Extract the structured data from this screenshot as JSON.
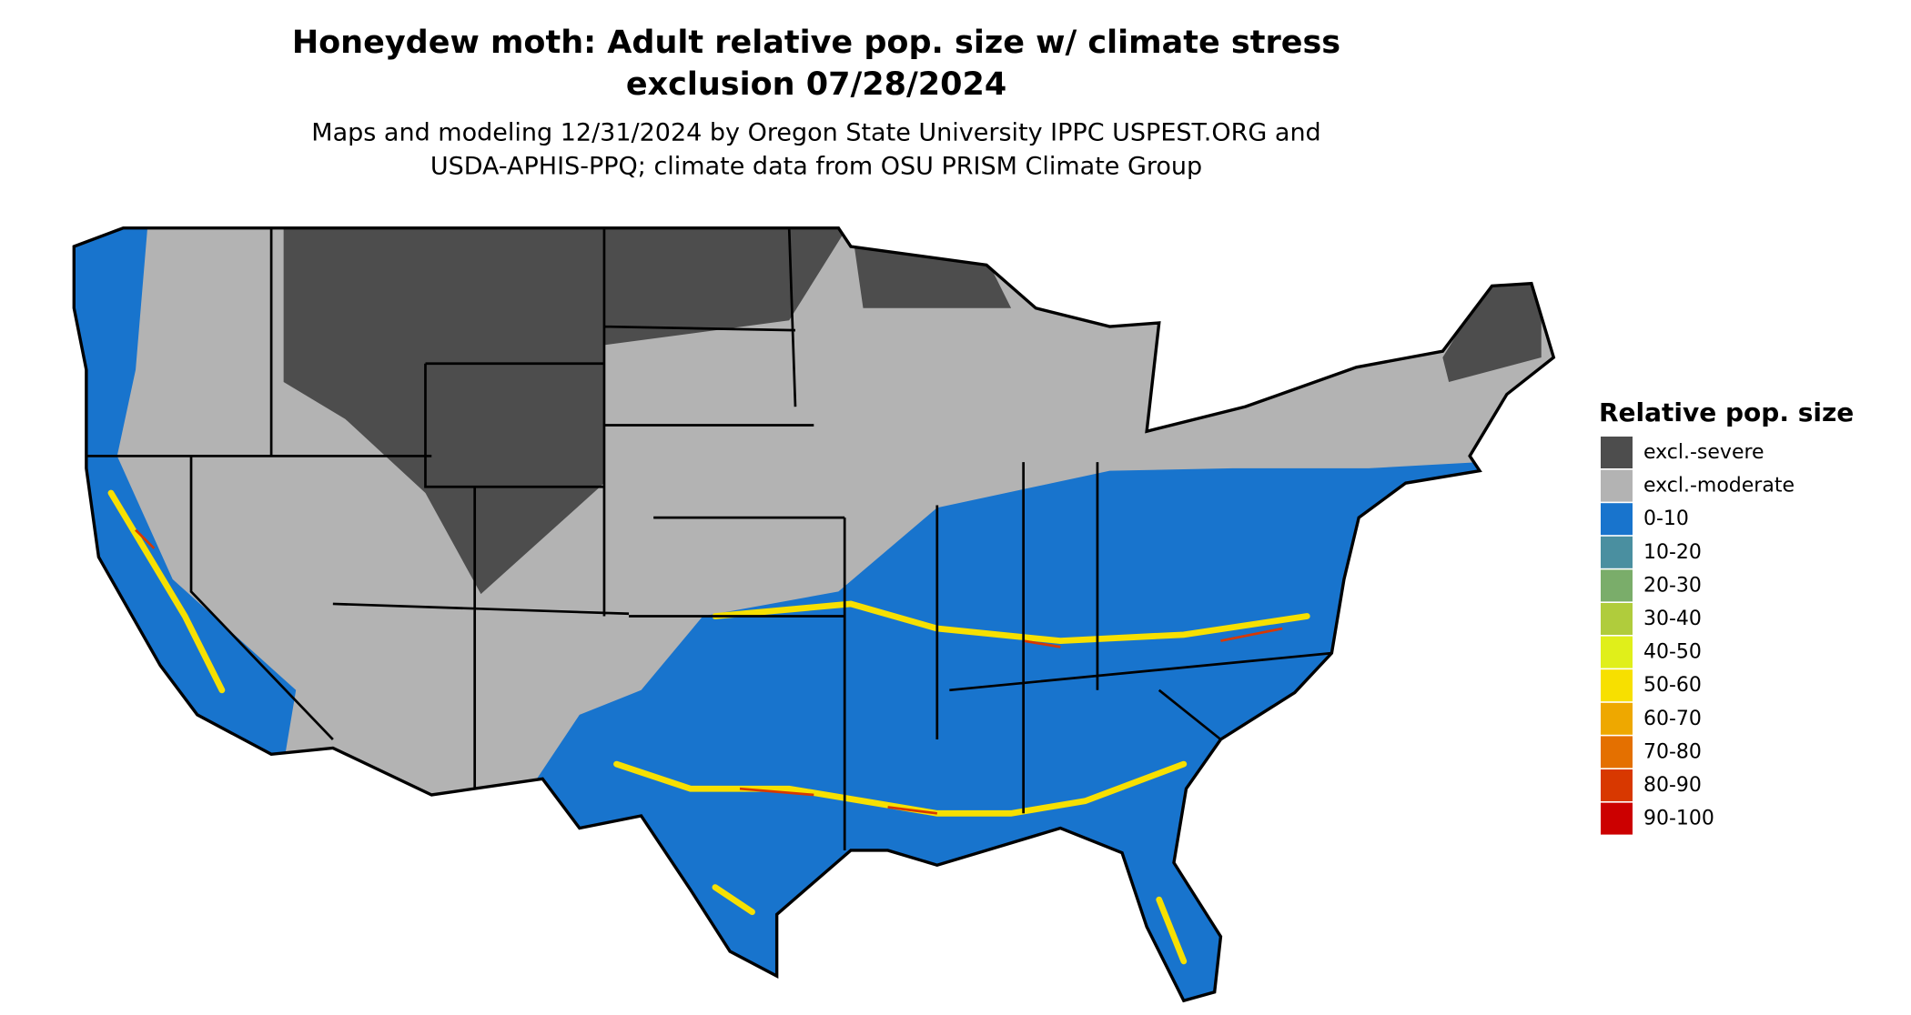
{
  "title": [
    "Honeydew moth: Adult relative pop. size w/ climate stress",
    "exclusion 07/28/2024"
  ],
  "subtitle": [
    "Maps and modeling 12/31/2024 by Oregon State University IPPC USPEST.ORG and",
    "USDA-APHIS-PPQ; climate data from OSU PRISM Climate Group"
  ],
  "legend": {
    "title": "Relative pop. size",
    "items": [
      {
        "label": "excl.-severe",
        "color": "#4d4d4d"
      },
      {
        "label": "excl.-moderate",
        "color": "#b3b3b3"
      },
      {
        "label": "0-10",
        "color": "#1874cd"
      },
      {
        "label": "10-20",
        "color": "#4a8fa0"
      },
      {
        "label": "20-30",
        "color": "#7aad6a"
      },
      {
        "label": "30-40",
        "color": "#b0cc3c"
      },
      {
        "label": "40-50",
        "color": "#e0ef1a"
      },
      {
        "label": "50-60",
        "color": "#f7e000"
      },
      {
        "label": "60-70",
        "color": "#eea800"
      },
      {
        "label": "70-80",
        "color": "#e47000"
      },
      {
        "label": "80-90",
        "color": "#d83800"
      },
      {
        "label": "90-100",
        "color": "#cc0000"
      }
    ]
  }
}
